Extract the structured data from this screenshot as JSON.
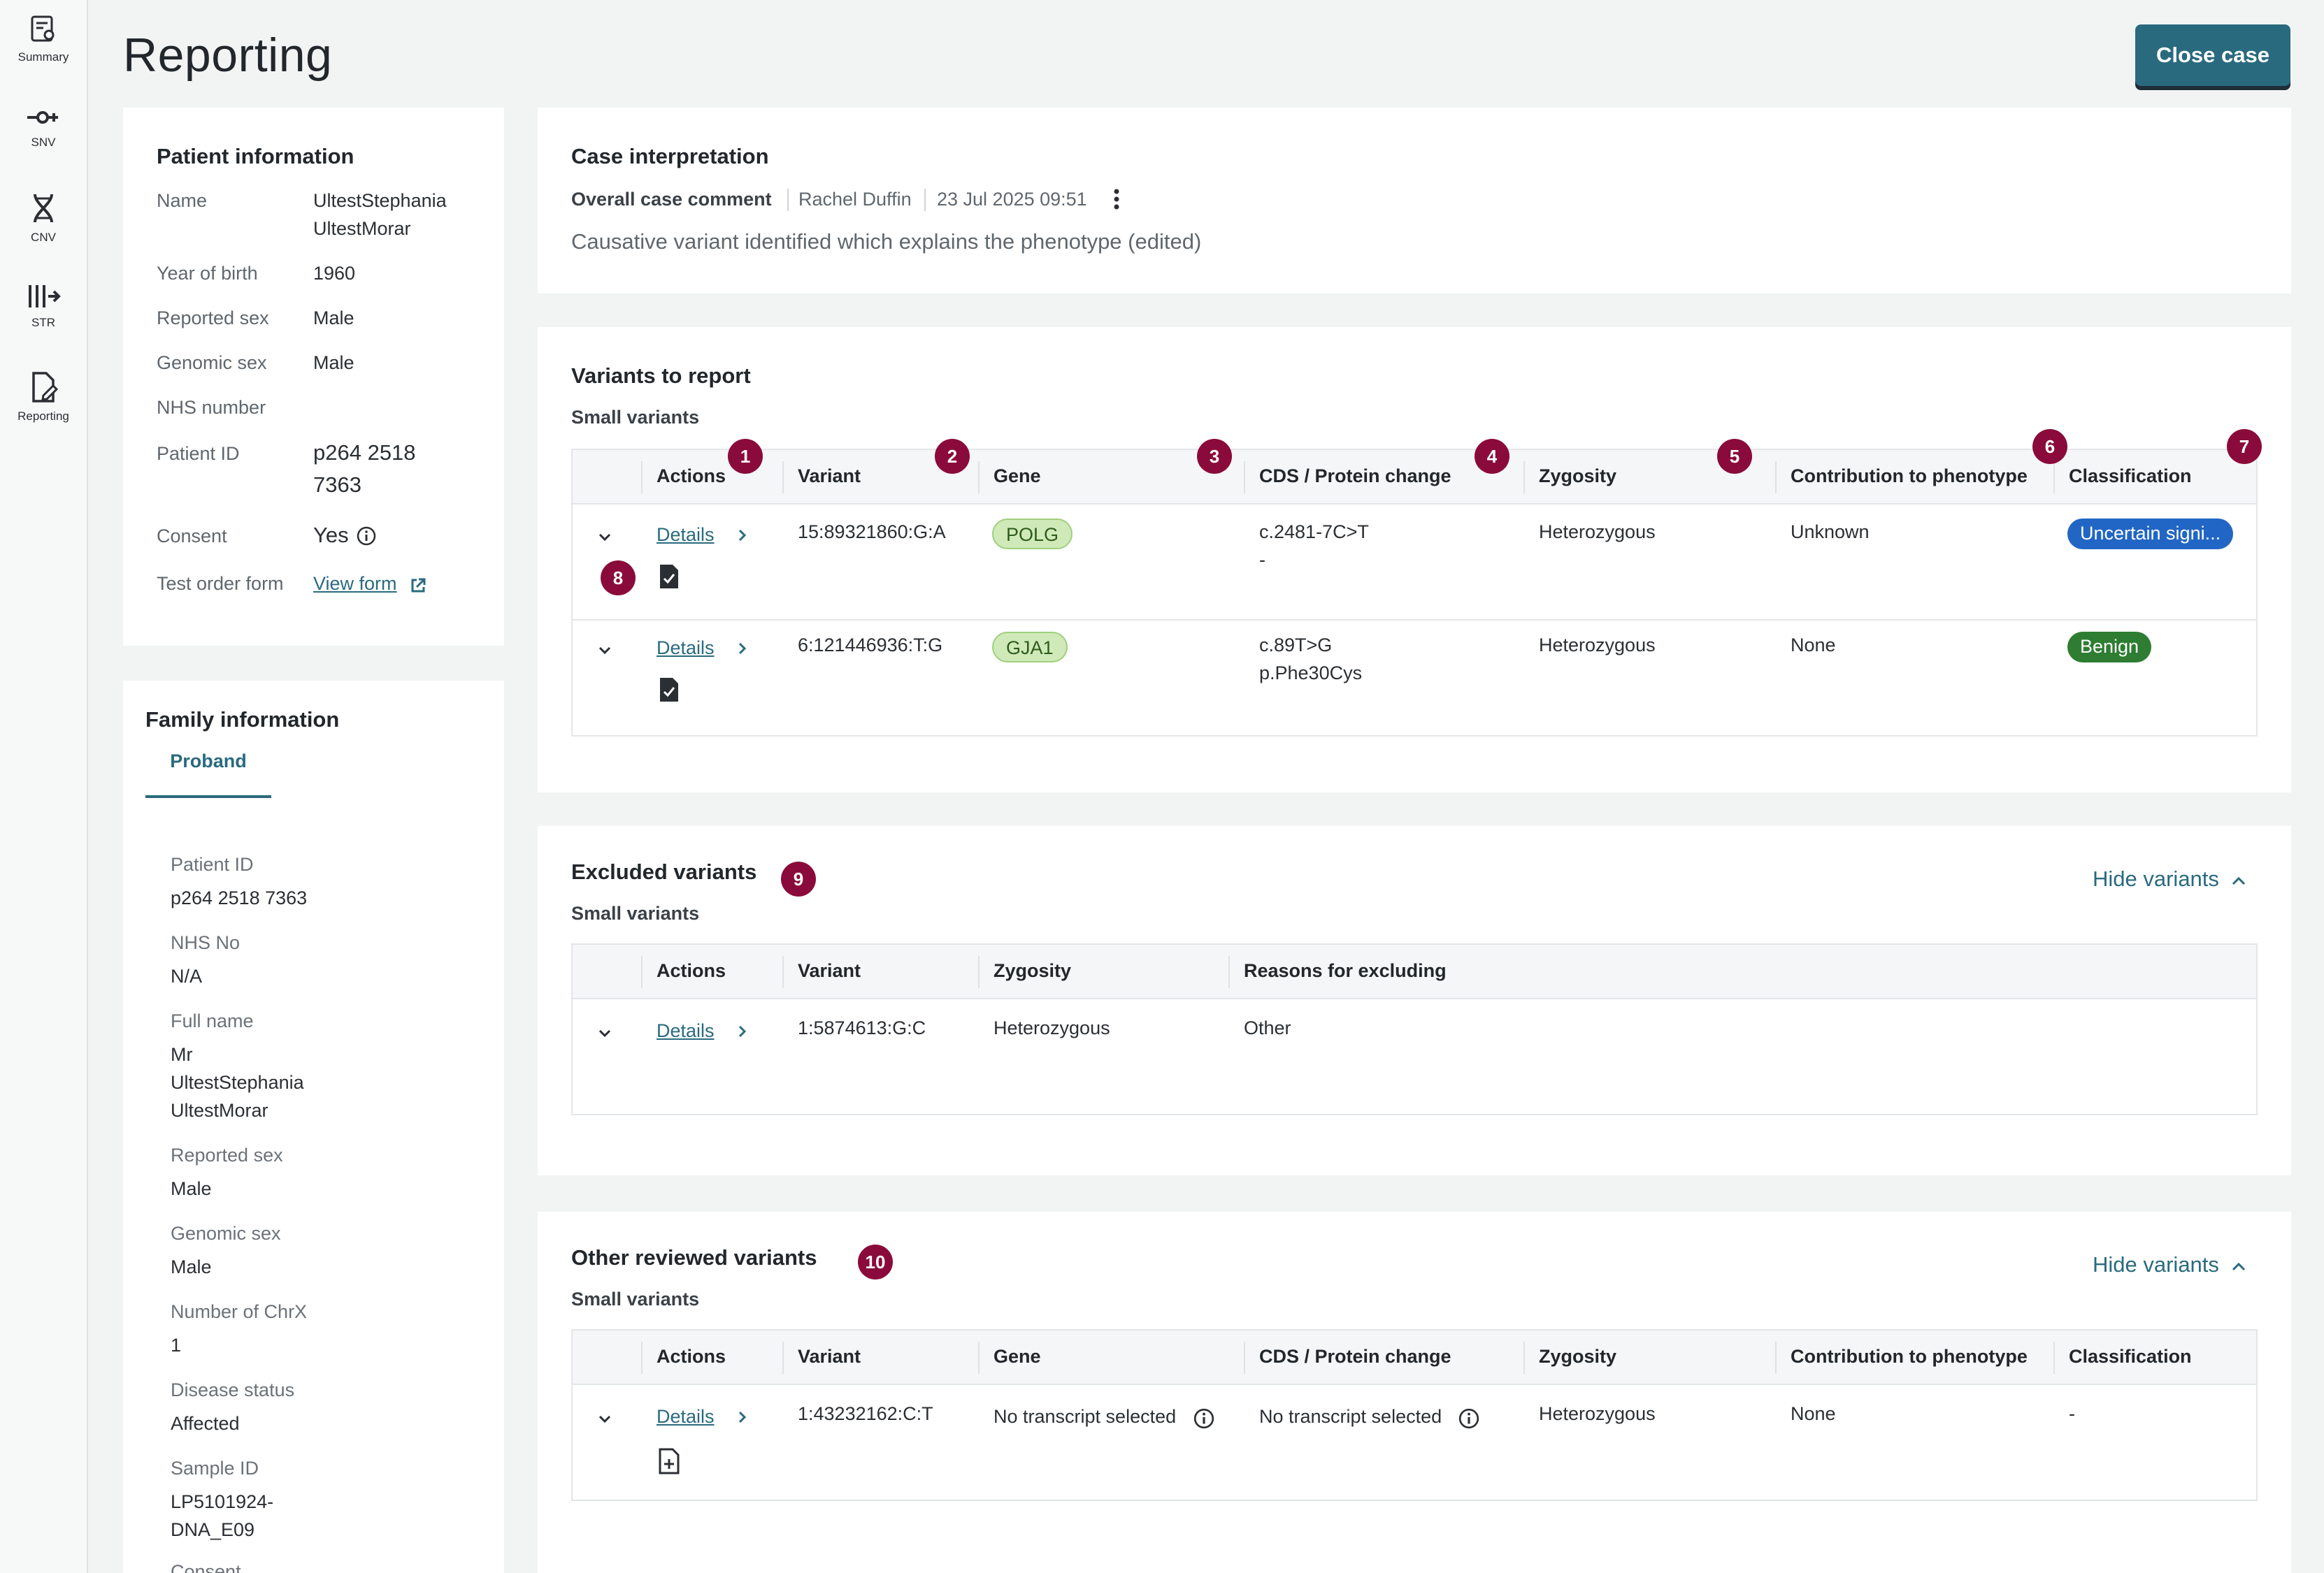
{
  "nav": {
    "items": [
      {
        "label": "Summary",
        "icon": "summary-icon"
      },
      {
        "label": "SNV",
        "icon": "snv-icon"
      },
      {
        "label": "CNV",
        "icon": "cnv-icon"
      },
      {
        "label": "STR",
        "icon": "str-icon"
      },
      {
        "label": "Reporting",
        "icon": "reporting-icon"
      }
    ]
  },
  "header": {
    "title": "Reporting",
    "close_label": "Close case"
  },
  "patient": {
    "title": "Patient information",
    "name_label": "Name",
    "name_line1": "UltestStephania",
    "name_line2": "UltestMorar",
    "yob_label": "Year of birth",
    "yob": "1960",
    "reported_sex_label": "Reported sex",
    "reported_sex": "Male",
    "genomic_sex_label": "Genomic sex",
    "genomic_sex": "Male",
    "nhs_label": "NHS number",
    "pid_label": "Patient ID",
    "pid_line1": "p264 2518",
    "pid_line2": "7363",
    "consent_label": "Consent",
    "consent": "Yes",
    "tof_label": "Test order form",
    "tof_link": "View form"
  },
  "family": {
    "title": "Family information",
    "tab": "Proband",
    "fields": [
      {
        "label": "Patient ID",
        "lines": [
          "p264 2518 7363"
        ]
      },
      {
        "label": "NHS No",
        "lines": [
          "N/A"
        ]
      },
      {
        "label": "Full name",
        "lines": [
          "Mr",
          "UltestStephania",
          "UltestMorar"
        ]
      },
      {
        "label": "Reported sex",
        "lines": [
          "Male"
        ]
      },
      {
        "label": "Genomic sex",
        "lines": [
          "Male"
        ]
      },
      {
        "label": "Number of ChrX",
        "lines": [
          "1"
        ]
      },
      {
        "label": "Disease status",
        "lines": [
          "Affected"
        ]
      },
      {
        "label": "Sample ID",
        "lines": [
          "LP5101924-",
          "DNA_E09"
        ]
      },
      {
        "label": "Consent",
        "lines": []
      }
    ]
  },
  "interpretation": {
    "title": "Case interpretation",
    "comment_label": "Overall case comment",
    "author": "Rachel Duffin",
    "date": "23 Jul 2025 09:51",
    "comment": "Causative variant identified which explains the phenotype (edited)"
  },
  "report": {
    "title": "Variants to report",
    "subtitle": "Small variants",
    "headers": [
      "Actions",
      "Variant",
      "Gene",
      "CDS / Protein change",
      "Zygosity",
      "Contribution to phenotype",
      "Classification"
    ],
    "rows": [
      {
        "details": "Details",
        "variant": "15:89321860:G:A",
        "gene": "POLG",
        "cds": "c.2481-7C>T",
        "protein": "-",
        "zygosity": "Heterozygous",
        "contribution": "Unknown",
        "classification": "Uncertain signi..."
      },
      {
        "details": "Details",
        "variant": "6:121446936:T:G",
        "gene": "GJA1",
        "cds": "c.89T>G",
        "protein": "p.Phe30Cys",
        "zygosity": "Heterozygous",
        "contribution": "None",
        "classification": "Benign"
      }
    ]
  },
  "excluded": {
    "title": "Excluded variants",
    "subtitle": "Small variants",
    "hide_label": "Hide variants",
    "headers": [
      "Actions",
      "Variant",
      "Zygosity",
      "Reasons for excluding"
    ],
    "rows": [
      {
        "details": "Details",
        "variant": "1:5874613:G:C",
        "zygosity": "Heterozygous",
        "reason": "Other"
      }
    ]
  },
  "other": {
    "title": "Other reviewed variants",
    "subtitle": "Small variants",
    "hide_label": "Hide variants",
    "headers": [
      "Actions",
      "Variant",
      "Gene",
      "CDS / Protein change",
      "Zygosity",
      "Contribution to phenotype",
      "Classification"
    ],
    "rows": [
      {
        "details": "Details",
        "variant": "1:43232162:C:T",
        "gene": "No transcript selected",
        "cds": "No transcript selected",
        "zygosity": "Heterozygous",
        "contribution": "None",
        "classification": "-"
      }
    ]
  },
  "markers": [
    "1",
    "2",
    "3",
    "4",
    "5",
    "6",
    "7",
    "8",
    "9",
    "10"
  ]
}
